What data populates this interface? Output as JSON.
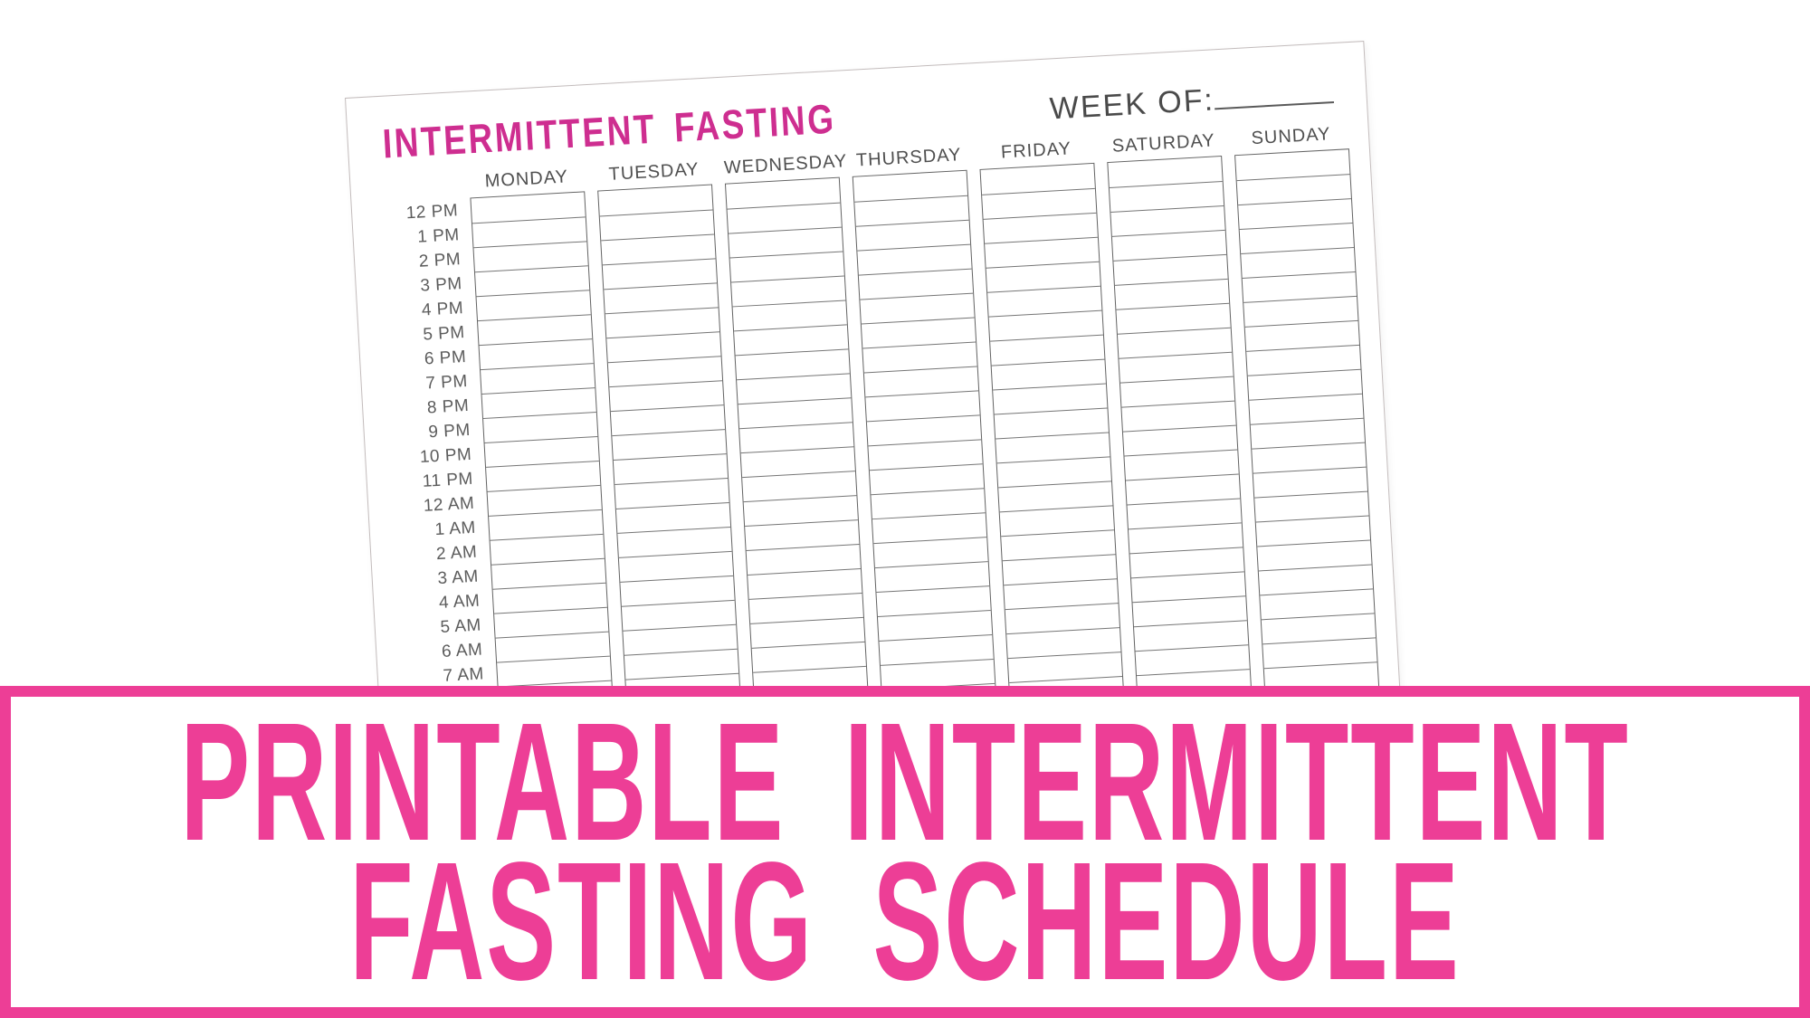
{
  "paper": {
    "title": "INTERMITTENT FASTING",
    "week_of_label": "WEEK OF:",
    "days": [
      "MONDAY",
      "TUESDAY",
      "WEDNESDAY",
      "THURSDAY",
      "FRIDAY",
      "SATURDAY",
      "SUNDAY"
    ],
    "times": [
      "12 PM",
      "1 PM",
      "2 PM",
      "3 PM",
      "4 PM",
      "5 PM",
      "6 PM",
      "7 PM",
      "8 PM",
      "9 PM",
      "10 PM",
      "11 PM",
      "12 AM",
      "1 AM",
      "2 AM",
      "3 AM",
      "4 AM",
      "5 AM",
      "6 AM",
      "7 AM"
    ]
  },
  "banner": {
    "line1": "PRINTABLE INTERMITTENT",
    "line2": "FASTING SCHEDULE"
  },
  "colors": {
    "title_pink": "#ce2e90",
    "banner_pink": "#ed3e96"
  }
}
